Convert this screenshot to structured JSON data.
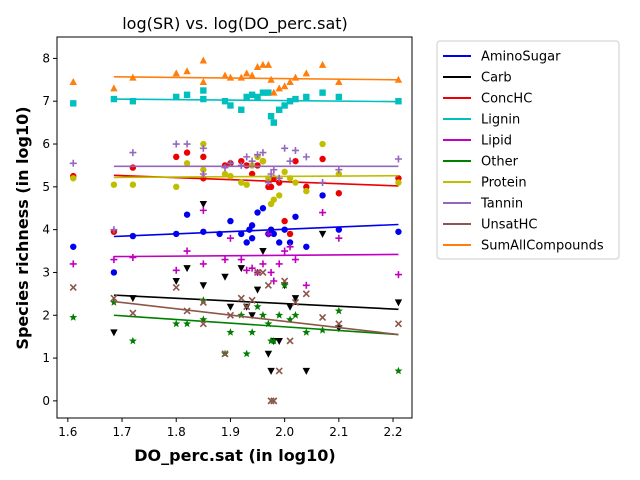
{
  "chart_data": {
    "type": "scatter",
    "title": "log(SR) vs. log(DO_perc.sat)",
    "xlabel": "DO_perc.sat (in log10)",
    "ylabel": "Species richness (in log10)",
    "xlim": [
      1.58,
      2.235
    ],
    "ylim": [
      -0.4,
      8.5
    ],
    "xticks": [
      "1.6",
      "1.7",
      "1.8",
      "1.9",
      "2.0",
      "2.1",
      "2.2"
    ],
    "yticks": [
      "0",
      "1",
      "2",
      "3",
      "4",
      "5",
      "6",
      "7",
      "8"
    ],
    "legend_position": "outside-right",
    "series": [
      {
        "name": "AminoSugar",
        "color": "#0000ee",
        "marker": "circle",
        "fit": [
          [
            1.685,
            3.84
          ],
          [
            2.21,
            4.12
          ]
        ],
        "points": [
          [
            1.61,
            3.6
          ],
          [
            1.685,
            3.0
          ],
          [
            1.72,
            3.85
          ],
          [
            1.8,
            3.9
          ],
          [
            1.82,
            4.35
          ],
          [
            1.85,
            3.95
          ],
          [
            1.88,
            3.9
          ],
          [
            1.9,
            4.2
          ],
          [
            1.92,
            3.9
          ],
          [
            1.93,
            3.7
          ],
          [
            1.935,
            4.0
          ],
          [
            1.94,
            4.1
          ],
          [
            1.95,
            4.4
          ],
          [
            1.96,
            4.5
          ],
          [
            1.97,
            3.9
          ],
          [
            1.975,
            4.0
          ],
          [
            1.98,
            3.9
          ],
          [
            1.99,
            3.7
          ],
          [
            2.0,
            4.0
          ],
          [
            2.01,
            3.7
          ],
          [
            2.02,
            4.3
          ],
          [
            2.04,
            3.6
          ],
          [
            2.07,
            4.8
          ],
          [
            2.1,
            4.0
          ],
          [
            2.21,
            3.95
          ],
          [
            1.94,
            3.8
          ]
        ]
      },
      {
        "name": "Carb",
        "color": "#000000",
        "marker": "triangle-down",
        "fit": [
          [
            1.685,
            2.47
          ],
          [
            2.21,
            2.14
          ]
        ],
        "points": [
          [
            1.685,
            1.6
          ],
          [
            1.72,
            2.4
          ],
          [
            1.8,
            2.8
          ],
          [
            1.82,
            3.1
          ],
          [
            1.85,
            4.6
          ],
          [
            1.85,
            2.7
          ],
          [
            1.89,
            2.9
          ],
          [
            1.9,
            2.2
          ],
          [
            1.92,
            3.1
          ],
          [
            1.93,
            2.2
          ],
          [
            1.94,
            2.0
          ],
          [
            1.95,
            2.6
          ],
          [
            1.96,
            3.5
          ],
          [
            1.97,
            1.1
          ],
          [
            1.975,
            0.7
          ],
          [
            1.98,
            1.4
          ],
          [
            1.99,
            1.4
          ],
          [
            2.0,
            2.7
          ],
          [
            2.01,
            2.2
          ],
          [
            2.02,
            2.4
          ],
          [
            2.04,
            0.7
          ],
          [
            2.07,
            3.9
          ],
          [
            2.1,
            1.7
          ],
          [
            2.21,
            2.3
          ]
        ]
      },
      {
        "name": "ConcHC",
        "color": "#ee0000",
        "marker": "circle",
        "fit": [
          [
            1.685,
            5.27
          ],
          [
            2.21,
            5.02
          ]
        ],
        "points": [
          [
            1.61,
            5.25
          ],
          [
            1.685,
            3.95
          ],
          [
            1.72,
            5.45
          ],
          [
            1.8,
            5.7
          ],
          [
            1.82,
            5.8
          ],
          [
            1.85,
            5.7
          ],
          [
            1.85,
            5.2
          ],
          [
            1.89,
            5.5
          ],
          [
            1.9,
            5.55
          ],
          [
            1.92,
            5.6
          ],
          [
            1.93,
            5.5
          ],
          [
            1.94,
            5.3
          ],
          [
            1.95,
            5.5
          ],
          [
            1.96,
            5.6
          ],
          [
            1.97,
            5.0
          ],
          [
            1.975,
            5.0
          ],
          [
            1.98,
            5.2
          ],
          [
            1.99,
            5.1
          ],
          [
            2.0,
            4.2
          ],
          [
            2.01,
            3.9
          ],
          [
            2.02,
            5.6
          ],
          [
            2.04,
            5.0
          ],
          [
            2.07,
            5.65
          ],
          [
            2.1,
            4.85
          ],
          [
            2.21,
            5.2
          ]
        ]
      },
      {
        "name": "Lignin",
        "color": "#00bfbf",
        "marker": "square",
        "fit": [
          [
            1.685,
            7.05
          ],
          [
            2.21,
            6.99
          ]
        ],
        "points": [
          [
            1.61,
            6.95
          ],
          [
            1.685,
            7.05
          ],
          [
            1.72,
            7.0
          ],
          [
            1.8,
            7.1
          ],
          [
            1.82,
            7.15
          ],
          [
            1.85,
            7.25
          ],
          [
            1.85,
            7.05
          ],
          [
            1.89,
            7.0
          ],
          [
            1.9,
            6.9
          ],
          [
            1.92,
            6.8
          ],
          [
            1.93,
            7.1
          ],
          [
            1.94,
            7.15
          ],
          [
            1.95,
            7.1
          ],
          [
            1.96,
            7.2
          ],
          [
            1.97,
            7.2
          ],
          [
            1.975,
            6.65
          ],
          [
            1.98,
            6.5
          ],
          [
            1.99,
            6.8
          ],
          [
            2.0,
            6.9
          ],
          [
            2.01,
            7.0
          ],
          [
            2.02,
            7.05
          ],
          [
            2.04,
            7.1
          ],
          [
            2.07,
            7.2
          ],
          [
            2.1,
            7.1
          ],
          [
            2.21,
            7.0
          ]
        ]
      },
      {
        "name": "Lipid",
        "color": "#bf00bf",
        "marker": "plus",
        "fit": [
          [
            1.685,
            3.37
          ],
          [
            2.21,
            3.42
          ]
        ],
        "points": [
          [
            1.61,
            3.2
          ],
          [
            1.685,
            3.3
          ],
          [
            1.72,
            3.35
          ],
          [
            1.8,
            3.05
          ],
          [
            1.82,
            3.5
          ],
          [
            1.85,
            3.2
          ],
          [
            1.85,
            4.45
          ],
          [
            1.89,
            3.3
          ],
          [
            1.9,
            3.8
          ],
          [
            1.92,
            3.3
          ],
          [
            1.93,
            3.05
          ],
          [
            1.94,
            3.1
          ],
          [
            1.95,
            3.0
          ],
          [
            1.96,
            3.2
          ],
          [
            1.97,
            3.9
          ],
          [
            1.975,
            3.0
          ],
          [
            1.98,
            2.8
          ],
          [
            1.99,
            3.2
          ],
          [
            2.0,
            3.5
          ],
          [
            2.01,
            3.6
          ],
          [
            2.02,
            3.3
          ],
          [
            2.04,
            2.7
          ],
          [
            2.07,
            4.4
          ],
          [
            2.1,
            3.8
          ],
          [
            2.21,
            2.95
          ]
        ]
      },
      {
        "name": "Other",
        "color": "#007f00",
        "marker": "star",
        "fit": [
          [
            1.685,
            2.0
          ],
          [
            2.21,
            1.55
          ]
        ],
        "points": [
          [
            1.61,
            1.95
          ],
          [
            1.685,
            2.3
          ],
          [
            1.72,
            1.4
          ],
          [
            1.8,
            1.8
          ],
          [
            1.82,
            1.8
          ],
          [
            1.85,
            2.35
          ],
          [
            1.85,
            1.9
          ],
          [
            1.89,
            1.1
          ],
          [
            1.9,
            1.6
          ],
          [
            1.92,
            2.0
          ],
          [
            1.93,
            1.1
          ],
          [
            1.94,
            1.6
          ],
          [
            1.95,
            2.2
          ],
          [
            1.96,
            2.0
          ],
          [
            1.97,
            1.8
          ],
          [
            1.975,
            1.4
          ],
          [
            1.98,
            1.4
          ],
          [
            1.99,
            2.0
          ],
          [
            2.0,
            2.7
          ],
          [
            2.01,
            1.9
          ],
          [
            2.02,
            2.0
          ],
          [
            2.04,
            1.6
          ],
          [
            2.07,
            1.65
          ],
          [
            2.1,
            2.1
          ],
          [
            2.21,
            0.7
          ]
        ]
      },
      {
        "name": "Protein",
        "color": "#bfbf00",
        "marker": "circle",
        "fit": [
          [
            1.685,
            5.22
          ],
          [
            2.21,
            5.26
          ]
        ],
        "points": [
          [
            1.61,
            5.2
          ],
          [
            1.685,
            5.05
          ],
          [
            1.72,
            5.05
          ],
          [
            1.8,
            5.0
          ],
          [
            1.82,
            5.55
          ],
          [
            1.85,
            6.0
          ],
          [
            1.85,
            5.4
          ],
          [
            1.89,
            5.3
          ],
          [
            1.9,
            5.25
          ],
          [
            1.92,
            5.1
          ],
          [
            1.93,
            5.05
          ],
          [
            1.94,
            5.5
          ],
          [
            1.95,
            5.7
          ],
          [
            1.96,
            5.6
          ],
          [
            1.97,
            5.2
          ],
          [
            1.975,
            4.6
          ],
          [
            1.98,
            4.7
          ],
          [
            1.99,
            4.8
          ],
          [
            2.0,
            5.35
          ],
          [
            2.01,
            5.2
          ],
          [
            2.02,
            5.1
          ],
          [
            2.04,
            4.9
          ],
          [
            2.07,
            6.0
          ],
          [
            2.1,
            5.3
          ],
          [
            2.21,
            5.1
          ]
        ]
      },
      {
        "name": "Tannin",
        "color": "#9467bd",
        "marker": "plus",
        "fit": [
          [
            1.685,
            5.48
          ],
          [
            2.21,
            5.48
          ]
        ],
        "points": [
          [
            1.61,
            5.55
          ],
          [
            1.685,
            4.0
          ],
          [
            1.72,
            5.8
          ],
          [
            1.8,
            6.0
          ],
          [
            1.82,
            6.0
          ],
          [
            1.85,
            5.9
          ],
          [
            1.85,
            5.3
          ],
          [
            1.89,
            5.45
          ],
          [
            1.9,
            5.55
          ],
          [
            1.92,
            5.5
          ],
          [
            1.93,
            5.7
          ],
          [
            1.94,
            5.6
          ],
          [
            1.95,
            5.75
          ],
          [
            1.96,
            5.8
          ],
          [
            1.97,
            5.1
          ],
          [
            1.975,
            5.3
          ],
          [
            1.98,
            5.4
          ],
          [
            1.99,
            5.2
          ],
          [
            2.0,
            5.9
          ],
          [
            2.01,
            5.6
          ],
          [
            2.02,
            5.85
          ],
          [
            2.04,
            5.7
          ],
          [
            2.07,
            5.1
          ],
          [
            2.1,
            5.4
          ],
          [
            2.21,
            5.65
          ]
        ]
      },
      {
        "name": "UnsatHC",
        "color": "#8c564b",
        "marker": "x",
        "fit": [
          [
            1.685,
            2.32
          ],
          [
            2.21,
            1.55
          ]
        ],
        "points": [
          [
            1.61,
            2.65
          ],
          [
            1.685,
            2.4
          ],
          [
            1.72,
            2.05
          ],
          [
            1.8,
            2.65
          ],
          [
            1.82,
            2.1
          ],
          [
            1.85,
            2.3
          ],
          [
            1.85,
            1.8
          ],
          [
            1.89,
            1.1
          ],
          [
            1.9,
            2.0
          ],
          [
            1.92,
            2.4
          ],
          [
            1.93,
            2.2
          ],
          [
            1.94,
            2.35
          ],
          [
            1.95,
            3.0
          ],
          [
            1.96,
            3.0
          ],
          [
            1.97,
            2.7
          ],
          [
            1.975,
            0.0
          ],
          [
            1.98,
            0.0
          ],
          [
            1.99,
            0.7
          ],
          [
            2.0,
            2.8
          ],
          [
            2.01,
            1.4
          ],
          [
            2.02,
            2.3
          ],
          [
            2.04,
            2.5
          ],
          [
            2.07,
            1.95
          ],
          [
            2.1,
            1.8
          ],
          [
            2.21,
            1.8
          ]
        ]
      },
      {
        "name": "SumAllCompounds",
        "color": "#ff7f0e",
        "marker": "triangle-up",
        "fit": [
          [
            1.685,
            7.57
          ],
          [
            2.21,
            7.5
          ]
        ],
        "points": [
          [
            1.61,
            7.45
          ],
          [
            1.685,
            7.3
          ],
          [
            1.72,
            7.55
          ],
          [
            1.8,
            7.65
          ],
          [
            1.82,
            7.7
          ],
          [
            1.85,
            7.95
          ],
          [
            1.85,
            7.45
          ],
          [
            1.89,
            7.6
          ],
          [
            1.9,
            7.55
          ],
          [
            1.92,
            7.55
          ],
          [
            1.93,
            7.65
          ],
          [
            1.94,
            7.6
          ],
          [
            1.95,
            7.8
          ],
          [
            1.96,
            7.85
          ],
          [
            1.97,
            7.85
          ],
          [
            1.975,
            7.5
          ],
          [
            1.98,
            7.2
          ],
          [
            1.99,
            7.3
          ],
          [
            2.0,
            7.35
          ],
          [
            2.01,
            7.45
          ],
          [
            2.02,
            7.55
          ],
          [
            2.04,
            7.65
          ],
          [
            2.07,
            7.85
          ],
          [
            2.1,
            7.45
          ],
          [
            2.21,
            7.5
          ]
        ]
      }
    ]
  }
}
